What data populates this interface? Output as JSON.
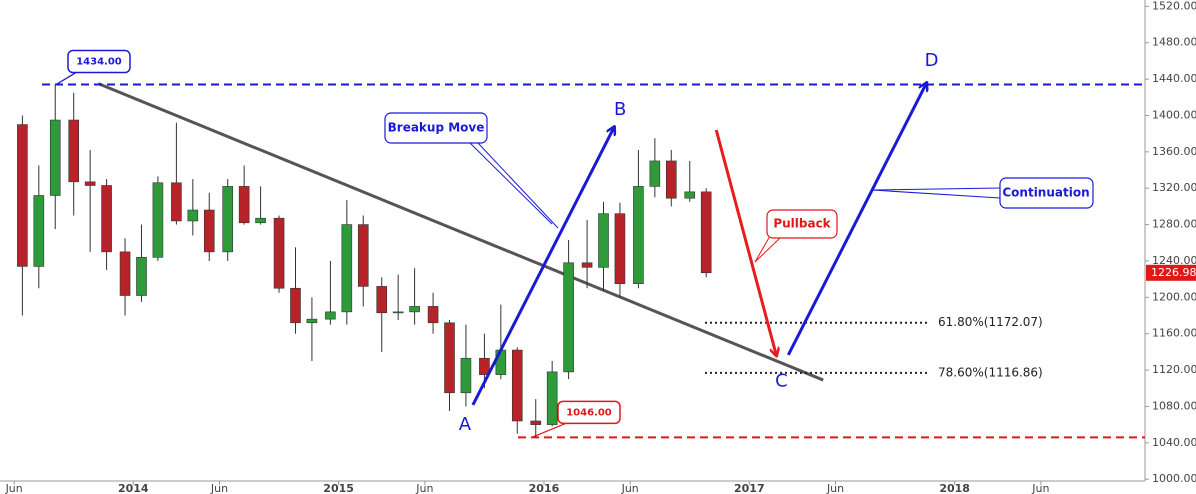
{
  "chart_data": {
    "type": "candlestick",
    "x": [
      2013.46,
      2013.54,
      2013.62,
      2013.71,
      2013.79,
      2013.87,
      2013.96,
      2014.04,
      2014.12,
      2014.21,
      2014.29,
      2014.37,
      2014.46,
      2014.54,
      2014.62,
      2014.71,
      2014.79,
      2014.87,
      2014.96,
      2015.04,
      2015.12,
      2015.21,
      2015.29,
      2015.37,
      2015.46,
      2015.54,
      2015.62,
      2015.71,
      2015.79,
      2015.87,
      2015.96,
      2016.04,
      2016.12,
      2016.21,
      2016.29,
      2016.37,
      2016.46,
      2016.54,
      2016.62,
      2016.71,
      2016.79
    ],
    "open": [
      1390,
      1234,
      1312,
      1395,
      1327,
      1323,
      1250,
      1202,
      1244,
      1326,
      1284,
      1296,
      1250,
      1322,
      1282,
      1287,
      1210,
      1172,
      1176,
      1184,
      1280,
      1212,
      1183,
      1184,
      1190,
      1172,
      1095,
      1133,
      1115,
      1142,
      1064,
      1060,
      1118,
      1238,
      1233,
      1292,
      1215,
      1322,
      1350,
      1309,
      1316
    ],
    "high": [
      1400,
      1345,
      1434,
      1425,
      1362,
      1330,
      1265,
      1280,
      1333,
      1392,
      1330,
      1315,
      1330,
      1345,
      1322,
      1290,
      1255,
      1200,
      1240,
      1307,
      1290,
      1222,
      1225,
      1232,
      1205,
      1175,
      1170,
      1160,
      1192,
      1145,
      1088,
      1130,
      1263,
      1285,
      1305,
      1304,
      1362,
      1375,
      1362,
      1350,
      1320
    ],
    "low": [
      1180,
      1210,
      1275,
      1290,
      1250,
      1230,
      1180,
      1195,
      1240,
      1280,
      1268,
      1240,
      1240,
      1280,
      1280,
      1205,
      1160,
      1130,
      1170,
      1170,
      1190,
      1140,
      1175,
      1170,
      1160,
      1075,
      1080,
      1100,
      1110,
      1050,
      1046,
      1058,
      1110,
      1210,
      1207,
      1200,
      1210,
      1310,
      1300,
      1305,
      1222
    ],
    "close": [
      1234,
      1312,
      1395,
      1327,
      1323,
      1250,
      1202,
      1244,
      1326,
      1284,
      1296,
      1250,
      1322,
      1282,
      1287,
      1210,
      1172,
      1176,
      1184,
      1280,
      1212,
      1183,
      1184,
      1190,
      1172,
      1095,
      1133,
      1115,
      1142,
      1064,
      1060,
      1118,
      1238,
      1233,
      1292,
      1215,
      1322,
      1350,
      1309,
      1316,
      1226.98
    ],
    "up_color": "#2e9a3a",
    "down_color": "#b8232a",
    "last_price": 1226.98,
    "xlim": [
      2013.351,
      2018.927
    ],
    "xticks": [
      {
        "value": 2013.42,
        "label": "Jun"
      },
      2014,
      {
        "value": 2014.42,
        "label": "Jun"
      },
      2015,
      {
        "value": 2015.42,
        "label": "Jun"
      },
      2016,
      {
        "value": 2016.42,
        "label": "Jun"
      },
      2017,
      {
        "value": 2017.42,
        "label": "Jun"
      },
      2018,
      {
        "value": 2018.42,
        "label": "Jun"
      }
    ],
    "ylim": [
      998,
      1527
    ],
    "yticks": [
      {
        "value": 1000,
        "label": "1000.00"
      },
      {
        "value": 1040,
        "label": "1040.00"
      },
      {
        "value": 1080,
        "label": "1080.00"
      },
      {
        "value": 1120,
        "label": "1120.00"
      },
      {
        "value": 1160,
        "label": "1160.00"
      },
      {
        "value": 1200,
        "label": "1200.00"
      },
      {
        "value": 1240,
        "label": "1240.00"
      },
      {
        "value": 1280,
        "label": "1280.00"
      },
      {
        "value": 1320,
        "label": "1320.00"
      },
      {
        "value": 1360,
        "label": "1360.00"
      },
      {
        "value": 1400,
        "label": "1400.00"
      },
      {
        "value": 1440,
        "label": "1440.00"
      },
      {
        "value": 1480,
        "label": "1480.00"
      },
      {
        "value": 1520,
        "label": "1520.00"
      }
    ],
    "levels": [
      {
        "value": 1434,
        "label": "1434.00",
        "color": "#1a1ad6"
      },
      {
        "value": 1046,
        "label": "1046.00",
        "color": "#e01818"
      }
    ],
    "fib_levels": [
      {
        "value": 1172.07,
        "label": "61.80%(1172.07)"
      },
      {
        "value": 1116.86,
        "label": "78.60%(1116.86)"
      }
    ],
    "trendline": {
      "x": [
        2013.83,
        2017.36
      ],
      "y": [
        1435,
        1109
      ],
      "color": "#555555"
    },
    "arrows": [
      {
        "x": [
          2015.654,
          2016.342
        ],
        "y": [
          1081.6,
          1387.3
        ],
        "color": "#1a1ad6"
      },
      {
        "x": [
          2016.839,
          2017.132
        ],
        "y": [
          1384,
          1136
        ],
        "color": "#e81c1c"
      },
      {
        "x": [
          2017.19,
          2017.863
        ],
        "y": [
          1136.6,
          1435.7
        ],
        "color": "#1a1ad6"
      }
    ],
    "wave_labels": [
      "A",
      "B",
      "C",
      "D"
    ],
    "callouts": [
      "Breakup Move",
      "Pullback",
      "Continuation"
    ]
  }
}
